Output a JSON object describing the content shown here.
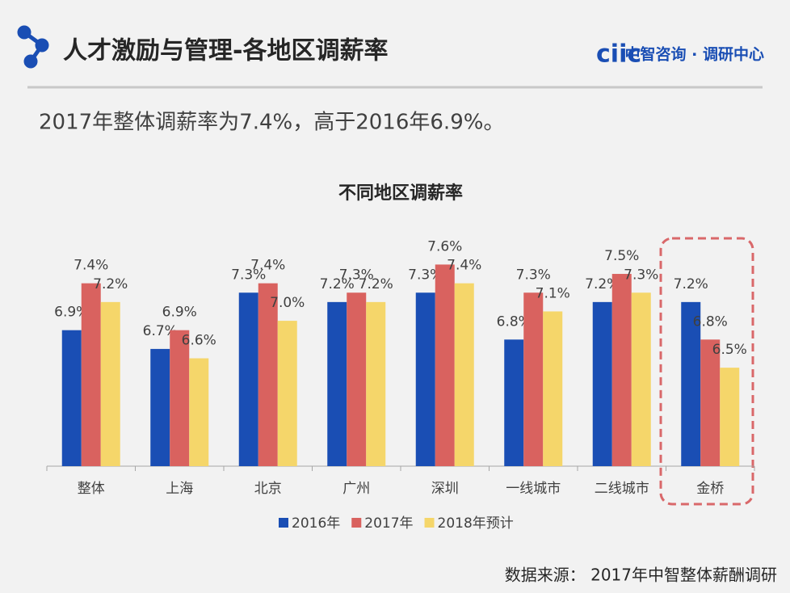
{
  "header": {
    "title": "人才激励与管理-各地区调薪率",
    "logo_mark": "ciic",
    "logo_text": "中智咨询 · 调研中心"
  },
  "summary": "2017年整体调薪率为7.4%，高于2016年6.9%。",
  "source": "数据来源： 2017年中智整体薪酬调研",
  "chart_data": {
    "type": "bar",
    "title": "不同地区调薪率",
    "categories": [
      "整体",
      "上海",
      "北京",
      "广州",
      "深圳",
      "一线城市",
      "二线城市",
      "金桥"
    ],
    "series": [
      {
        "name": "2016年",
        "color": "#1a4eb4",
        "values": [
          6.9,
          6.7,
          7.3,
          7.2,
          7.3,
          6.8,
          7.2,
          7.2
        ],
        "value_labels": [
          "6.9%",
          "6.7%",
          "7.3%",
          "7.2%",
          "7.3%",
          "6.8%",
          "7.2%",
          "7.2%"
        ]
      },
      {
        "name": "2017年",
        "color": "#d9625f",
        "values": [
          7.4,
          6.9,
          7.4,
          7.3,
          7.6,
          7.3,
          7.5,
          6.8
        ],
        "value_labels": [
          "7.4%",
          "6.9%",
          "7.4%",
          "7.3%",
          "7.6%",
          "7.3%",
          "7.5%",
          "6.8%"
        ]
      },
      {
        "name": "2018年预计",
        "color": "#f5d66a",
        "values": [
          7.2,
          6.6,
          7.0,
          7.2,
          7.4,
          7.1,
          7.3,
          6.5
        ],
        "value_labels": [
          "7.2%",
          "6.6%",
          "7.0%",
          "7.2%",
          "7.4%",
          "7.1%",
          "7.3%",
          "6.5%"
        ]
      }
    ],
    "ylim": [
      5.45,
      8.0
    ]
  }
}
